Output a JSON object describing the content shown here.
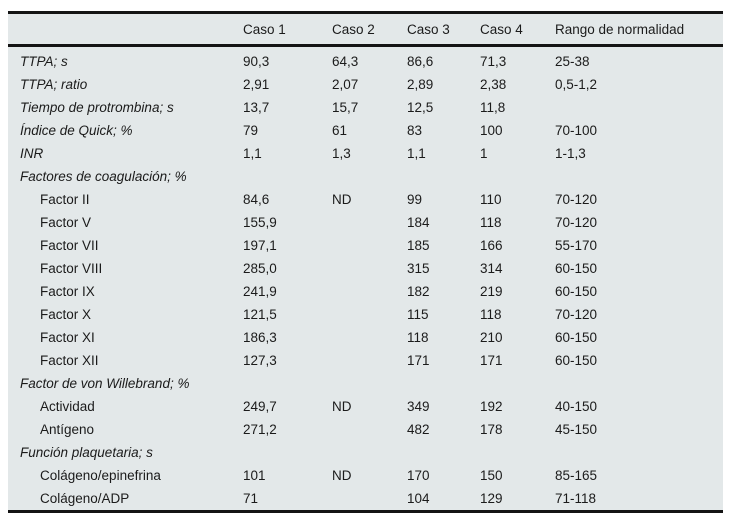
{
  "table": {
    "columns": [
      "",
      "Caso 1",
      "Caso 2",
      "Caso 3",
      "Caso 4",
      "Rango de normalidad"
    ],
    "rows": [
      {
        "label": "TTPA; s",
        "style": "param",
        "values": [
          "90,3",
          "64,3",
          "86,6",
          "71,3",
          "25-38"
        ]
      },
      {
        "label": "TTPA; ratio",
        "style": "param",
        "values": [
          "2,91",
          "2,07",
          "2,89",
          "2,38",
          "0,5-1,2"
        ]
      },
      {
        "label": "Tiempo de protrombina; s",
        "style": "param",
        "values": [
          "13,7",
          "15,7",
          "12,5",
          "11,8",
          ""
        ]
      },
      {
        "label": "Índice de Quick; %",
        "style": "param",
        "values": [
          "79",
          "61",
          "83",
          "100",
          "70-100"
        ]
      },
      {
        "label": "INR",
        "style": "param",
        "values": [
          "1,1",
          "1,3",
          "1,1",
          "1",
          "1-1,3"
        ]
      },
      {
        "label": "Factores de coagulación; %",
        "style": "section",
        "values": [
          "",
          "",
          "",
          "",
          ""
        ]
      },
      {
        "label": "Factor II",
        "style": "sub",
        "values": [
          "84,6",
          "ND",
          "99",
          "110",
          "70-120"
        ]
      },
      {
        "label": "Factor V",
        "style": "sub",
        "values": [
          "155,9",
          "",
          "184",
          "118",
          "70-120"
        ]
      },
      {
        "label": "Factor VII",
        "style": "sub",
        "values": [
          "197,1",
          "",
          "185",
          "166",
          "55-170"
        ]
      },
      {
        "label": "Factor VIII",
        "style": "sub",
        "values": [
          "285,0",
          "",
          "315",
          "314",
          "60-150"
        ]
      },
      {
        "label": "Factor IX",
        "style": "sub",
        "values": [
          "241,9",
          "",
          "182",
          "219",
          "60-150"
        ]
      },
      {
        "label": "Factor X",
        "style": "sub",
        "values": [
          "121,5",
          "",
          "115",
          "118",
          "70-120"
        ]
      },
      {
        "label": "Factor XI",
        "style": "sub",
        "values": [
          "186,3",
          "",
          "118",
          "210",
          "60-150"
        ]
      },
      {
        "label": "Factor XII",
        "style": "sub",
        "values": [
          "127,3",
          "",
          "171",
          "171",
          "60-150"
        ]
      },
      {
        "label": "Factor de von Willebrand; %",
        "style": "section",
        "values": [
          "",
          "",
          "",
          "",
          ""
        ]
      },
      {
        "label": "Actividad",
        "style": "sub",
        "values": [
          "249,7",
          "ND",
          "349",
          "192",
          "40-150"
        ]
      },
      {
        "label": "Antígeno",
        "style": "sub",
        "values": [
          "271,2",
          "",
          "482",
          "178",
          "45-150"
        ]
      },
      {
        "label": "Función plaquetaria; s",
        "style": "section",
        "values": [
          "",
          "",
          "",
          "",
          ""
        ]
      },
      {
        "label": "Colágeno/epinefrina",
        "style": "sub",
        "values": [
          "101",
          "ND",
          "170",
          "150",
          "85-165"
        ]
      },
      {
        "label": "Colágeno/ADP",
        "style": "sub",
        "values": [
          "71",
          "",
          "104",
          "129",
          "71-118"
        ]
      }
    ]
  },
  "colors": {
    "table_background": "#e3e8e9",
    "border": "#141414",
    "text": "#1b1b1b",
    "page_background": "#ffffff"
  }
}
